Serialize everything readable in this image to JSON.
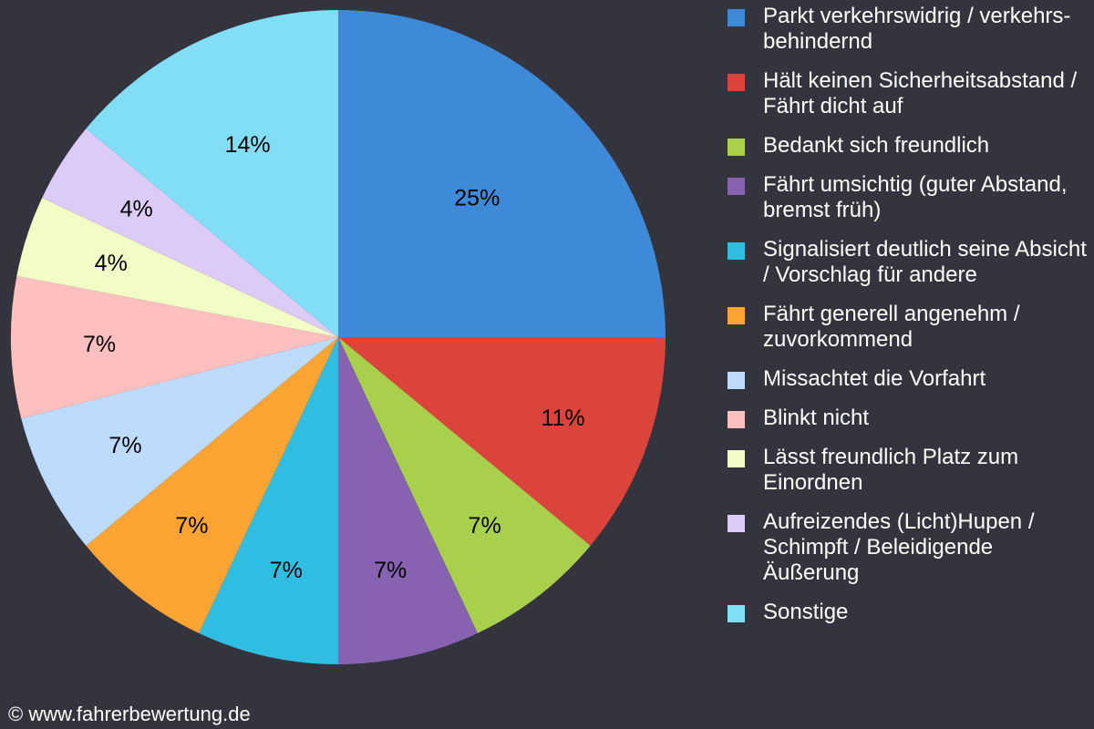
{
  "chart_data": {
    "type": "pie",
    "slices": [
      {
        "label": "Parkt verkehrswidrig / verkehrs-behindernd",
        "value": 25,
        "display": "25%",
        "color": "#3e8ad8"
      },
      {
        "label": "Hält keinen Sicherheitsabstand / Fährt dicht auf",
        "value": 11,
        "display": "11%",
        "color": "#db443a"
      },
      {
        "label": "Bedankt sich freundlich",
        "value": 7,
        "display": "7%",
        "color": "#a8d04d"
      },
      {
        "label": "Fährt umsichtig (guter Abstand, bremst früh)",
        "value": 7,
        "display": "7%",
        "color": "#8662b0"
      },
      {
        "label": "Signalisiert deutlich seine Absicht / Vorschlag für andere",
        "value": 7,
        "display": "7%",
        "color": "#2fbee1"
      },
      {
        "label": "Fährt generell angenehm / zuvorkommend",
        "value": 7,
        "display": "7%",
        "color": "#fea432"
      },
      {
        "label": "Missachtet die Vorfahrt",
        "value": 7,
        "display": "7%",
        "color": "#bcdbfd"
      },
      {
        "label": "Blinkt nicht",
        "value": 7,
        "display": "7%",
        "color": "#febfbf"
      },
      {
        "label": "Lässt freundlich Platz zum Einordnen",
        "value": 4,
        "display": "4%",
        "color": "#f1fdc5"
      },
      {
        "label": "Aufreizendes (Licht)Hupen / Schimpft / Beleidigende Äußerung",
        "value": 4,
        "display": "4%",
        "color": "#dccbf7"
      },
      {
        "label": "Sonstige",
        "value": 14,
        "display": "14%",
        "color": "#82def5"
      }
    ],
    "legend_placement": "right"
  },
  "footer": {
    "copyright": "© www.fahrerbewertung.de"
  }
}
